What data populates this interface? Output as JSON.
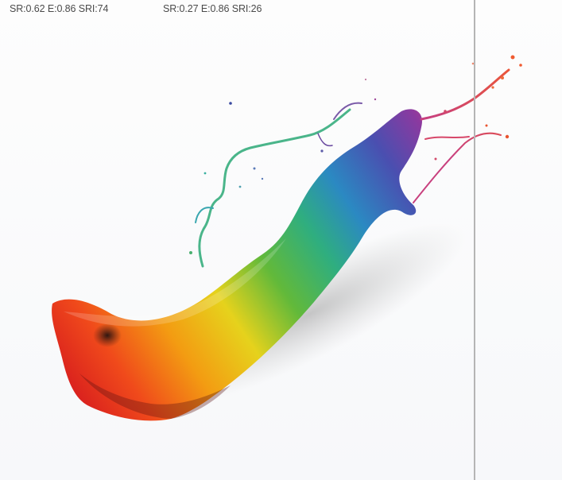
{
  "labels": {
    "left": "SR:0.62 E:0.86 SRI:74",
    "right": "SR:0.27 E:0.86 SRI:26"
  },
  "image": {
    "subject": "paint-splash-icon"
  },
  "colors": {
    "background": "#fbfbfb",
    "divider": "#b5b5b5",
    "label_text": "#4a4a4a"
  }
}
